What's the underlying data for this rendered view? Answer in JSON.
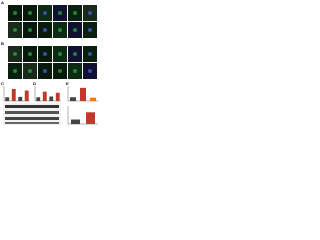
{
  "panels": [
    {
      "label": "A"
    },
    {
      "label": "B"
    },
    {
      "label": "C"
    },
    {
      "label": "D"
    },
    {
      "label": "E"
    }
  ],
  "charts": [
    {
      "type": "bar",
      "values": [
        1,
        3.2,
        1.1,
        2.8
      ],
      "colors": [
        "#444444",
        "#c0392b",
        "#444444",
        "#c0392b"
      ],
      "ylim": [
        0,
        4
      ]
    },
    {
      "type": "bar",
      "values": [
        1,
        2.5,
        1.2,
        2.2
      ],
      "colors": [
        "#444444",
        "#c0392b",
        "#444444",
        "#c0392b"
      ],
      "ylim": [
        0,
        4
      ]
    },
    {
      "type": "bar",
      "values": [
        1,
        3.5,
        0.9
      ],
      "colors": [
        "#444444",
        "#c0392b",
        "#e67e22"
      ],
      "ylim": [
        0,
        4
      ]
    },
    {
      "type": "bar",
      "values": [
        1,
        2.6
      ],
      "colors": [
        "#444444",
        "#c0392b"
      ],
      "ylim": [
        0,
        4
      ]
    }
  ]
}
